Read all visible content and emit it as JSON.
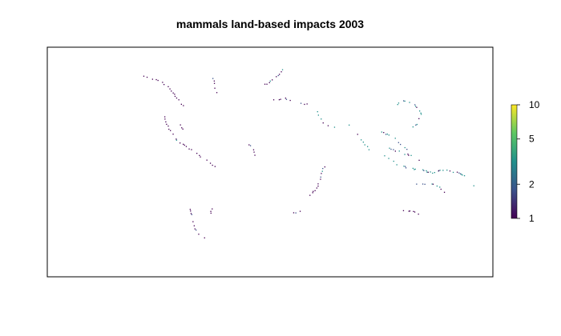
{
  "title": "mammals land-based impacts 2003",
  "legend": {
    "scale": "log",
    "min": 1,
    "max": 10,
    "ticks": [
      {
        "value": 10,
        "label": "10"
      },
      {
        "value": 5,
        "label": "5"
      },
      {
        "value": 2,
        "label": "2"
      },
      {
        "value": 1,
        "label": "1"
      }
    ],
    "colors": [
      "#440154",
      "#3b528b",
      "#21908c",
      "#5dc863",
      "#fde725"
    ]
  },
  "chart_data": {
    "type": "heatmap",
    "title": "mammals land-based impacts 2003",
    "color_scale": "viridis",
    "scale": "log",
    "range": [
      1,
      10
    ],
    "legend_ticks": [
      1,
      2,
      5,
      10
    ],
    "legend_placement": "right",
    "axes": "none"
  }
}
